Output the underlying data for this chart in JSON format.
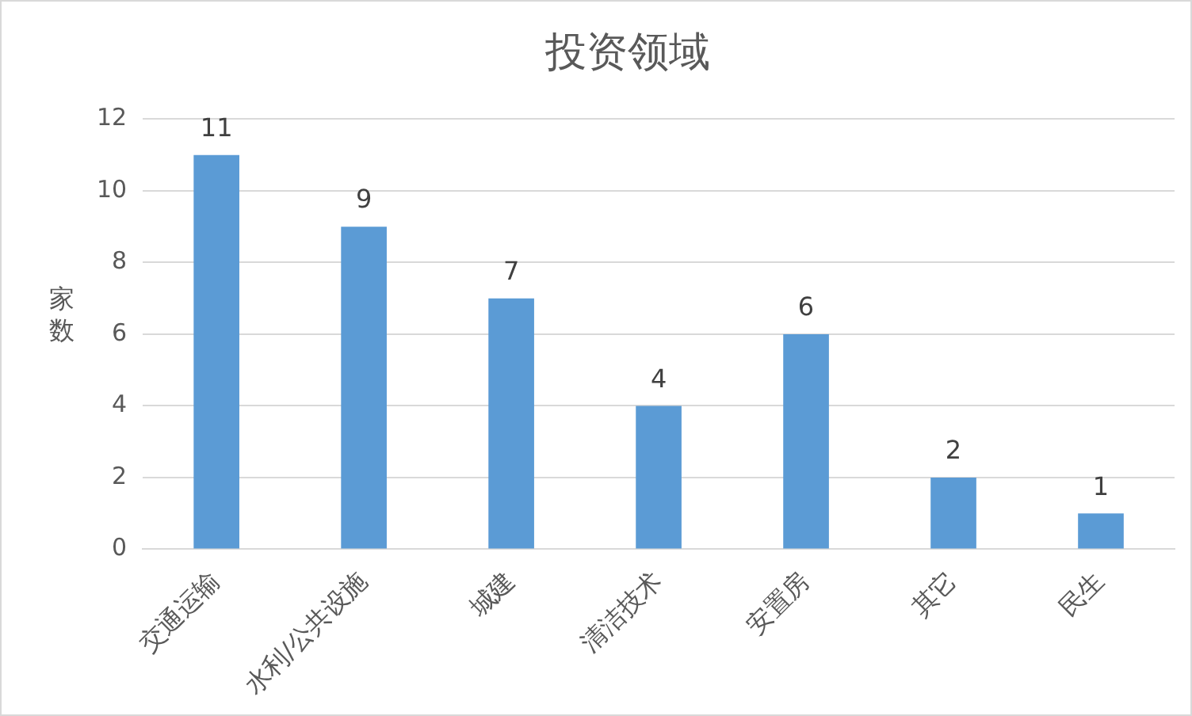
{
  "chart_data": {
    "type": "bar",
    "title": "投资领域",
    "ylabel": "家数",
    "categories": [
      "交通运输",
      "水利/公共设施",
      "城建",
      "清洁技术",
      "安置房",
      "其它",
      "民生"
    ],
    "values": [
      11,
      9,
      7,
      4,
      6,
      2,
      1
    ],
    "color": "#5b9bd5",
    "ylim": [
      0,
      12
    ],
    "yticks": [
      0,
      2,
      4,
      6,
      8,
      10,
      12
    ],
    "grid": "y",
    "data_labels": true,
    "legend": false
  }
}
